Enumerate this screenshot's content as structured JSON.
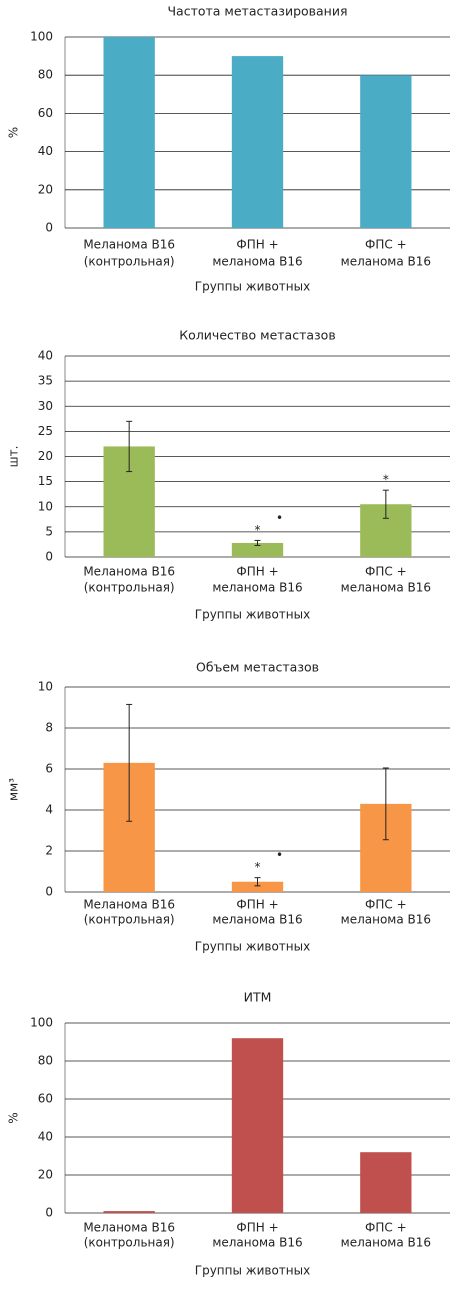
{
  "chart_data": [
    {
      "type": "bar",
      "title": "Частота метастазирования",
      "ylabel": "%",
      "xlabel": "Группы животных",
      "categories": [
        [
          "Меланома В16",
          "(контрольная)"
        ],
        [
          "ФПН +",
          "меланома В16"
        ],
        [
          "ФПС +",
          "меланома В16"
        ]
      ],
      "values": [
        100,
        90,
        80
      ],
      "color": "#4bacc6",
      "ylim": [
        0,
        100
      ],
      "yticks": [
        0,
        20,
        40,
        60,
        80,
        100
      ],
      "grid": true
    },
    {
      "type": "bar",
      "title": "Количество метастазов",
      "ylabel": "шт.",
      "xlabel": "Группы животных",
      "categories": [
        [
          "Меланома В16",
          "(контрольная)"
        ],
        [
          "ФПН +",
          "меланома В16"
        ],
        [
          "ФПС +",
          "меланома В16"
        ]
      ],
      "values": [
        22,
        2.8,
        10.5
      ],
      "errors": [
        5,
        0.5,
        2.8
      ],
      "significance": [
        null,
        [
          "*",
          "•"
        ],
        [
          "*"
        ]
      ],
      "color": "#9bbb59",
      "ylim": [
        0,
        40
      ],
      "yticks": [
        0,
        5,
        10,
        15,
        20,
        25,
        30,
        35,
        40
      ],
      "grid": true
    },
    {
      "type": "bar",
      "title": "Объем метастазов",
      "ylabel": "мм³",
      "xlabel": "Группы животных",
      "categories": [
        [
          "Меланома В16",
          "(контрольная)"
        ],
        [
          "ФПН +",
          "меланома В16"
        ],
        [
          "ФПС +",
          "меланома В16"
        ]
      ],
      "values": [
        6.3,
        0.5,
        4.3
      ],
      "errors": [
        2.85,
        0.2,
        1.75
      ],
      "significance": [
        null,
        [
          "*",
          "•"
        ],
        null
      ],
      "color": "#f79646",
      "ylim": [
        0,
        10
      ],
      "yticks": [
        0,
        2,
        4,
        6,
        8,
        10
      ],
      "grid": true
    },
    {
      "type": "bar",
      "title": "ИТМ",
      "ylabel": "%",
      "xlabel": "Группы животных",
      "categories": [
        [
          "Меланома В16",
          "(контрольная)"
        ],
        [
          "ФПН +",
          "меланома В16"
        ],
        [
          "ФПС +",
          "меланома В16"
        ]
      ],
      "values": [
        1,
        92,
        32
      ],
      "color": "#c0504d",
      "ylim": [
        0,
        100
      ],
      "yticks": [
        0,
        20,
        40,
        60,
        80,
        100
      ],
      "grid": true
    }
  ]
}
